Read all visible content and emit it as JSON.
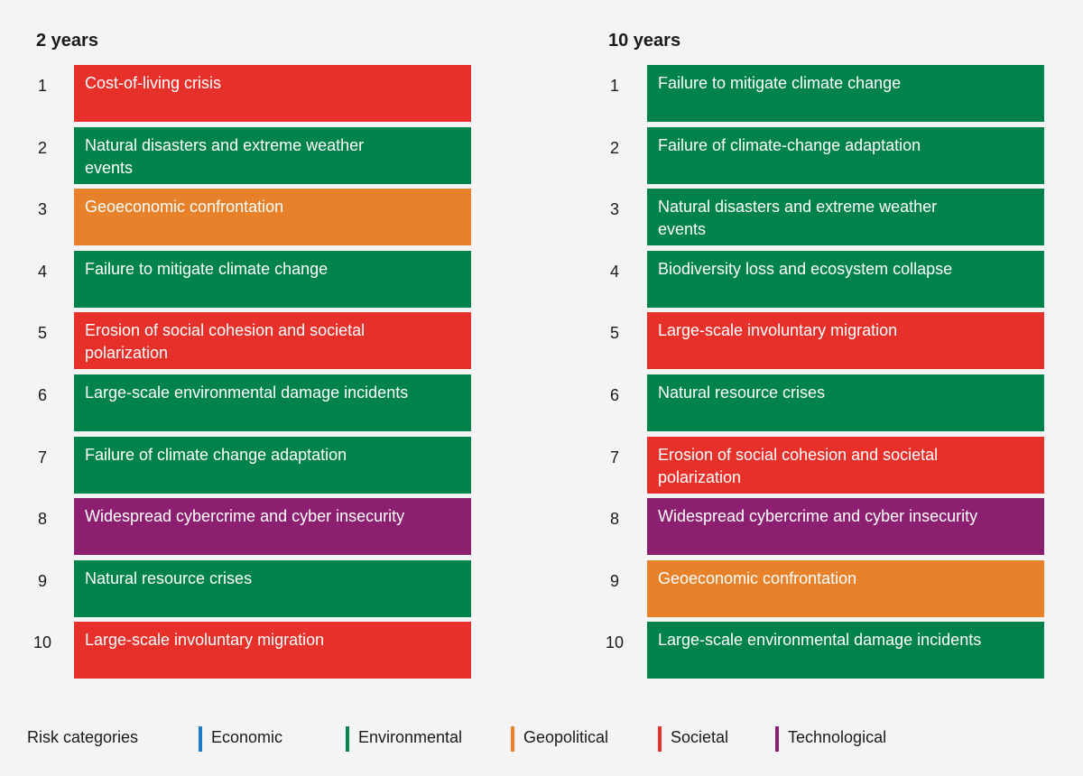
{
  "panels": [
    {
      "title": "2 years",
      "items": [
        {
          "rank": 1,
          "label": "Cost-of-living crisis",
          "category": "Societal"
        },
        {
          "rank": 2,
          "label": "Natural disasters and extreme weather events",
          "category": "Environmental"
        },
        {
          "rank": 3,
          "label": "Geoeconomic confrontation",
          "category": "Geopolitical"
        },
        {
          "rank": 4,
          "label": "Failure to mitigate climate change",
          "category": "Environmental"
        },
        {
          "rank": 5,
          "label": "Erosion of social cohesion and societal polarization",
          "category": "Societal"
        },
        {
          "rank": 6,
          "label": "Large-scale environmental damage incidents",
          "category": "Environmental"
        },
        {
          "rank": 7,
          "label": "Failure of climate change adaptation",
          "category": "Environmental"
        },
        {
          "rank": 8,
          "label": "Widespread cybercrime and cyber insecurity",
          "category": "Technological"
        },
        {
          "rank": 9,
          "label": "Natural resource crises",
          "category": "Environmental"
        },
        {
          "rank": 10,
          "label": "Large-scale involuntary migration",
          "category": "Societal"
        }
      ]
    },
    {
      "title": "10 years",
      "items": [
        {
          "rank": 1,
          "label": "Failure to mitigate climate change",
          "category": "Environmental"
        },
        {
          "rank": 2,
          "label": "Failure of climate-change adaptation",
          "category": "Environmental"
        },
        {
          "rank": 3,
          "label": "Natural disasters and extreme weather events",
          "category": "Environmental"
        },
        {
          "rank": 4,
          "label": "Biodiversity loss and ecosystem collapse",
          "category": "Environmental"
        },
        {
          "rank": 5,
          "label": "Large-scale involuntary migration",
          "category": "Societal"
        },
        {
          "rank": 6,
          "label": "Natural resource crises",
          "category": "Environmental"
        },
        {
          "rank": 7,
          "label": "Erosion of social cohesion and societal polarization",
          "category": "Societal"
        },
        {
          "rank": 8,
          "label": "Widespread cybercrime and cyber insecurity",
          "category": "Technological"
        },
        {
          "rank": 9,
          "label": "Geoeconomic confrontation",
          "category": "Geopolitical"
        },
        {
          "rank": 10,
          "label": "Large-scale environmental damage incidents",
          "category": "Environmental"
        }
      ]
    }
  ],
  "legend": {
    "title": "Risk categories",
    "items": [
      {
        "label": "Economic",
        "color": "#1b7bc4"
      },
      {
        "label": "Environmental",
        "color": "#00834a"
      },
      {
        "label": "Geopolitical",
        "color": "#e8822a"
      },
      {
        "label": "Societal",
        "color": "#e8302a"
      },
      {
        "label": "Technological",
        "color": "#8d1f70"
      }
    ]
  }
}
